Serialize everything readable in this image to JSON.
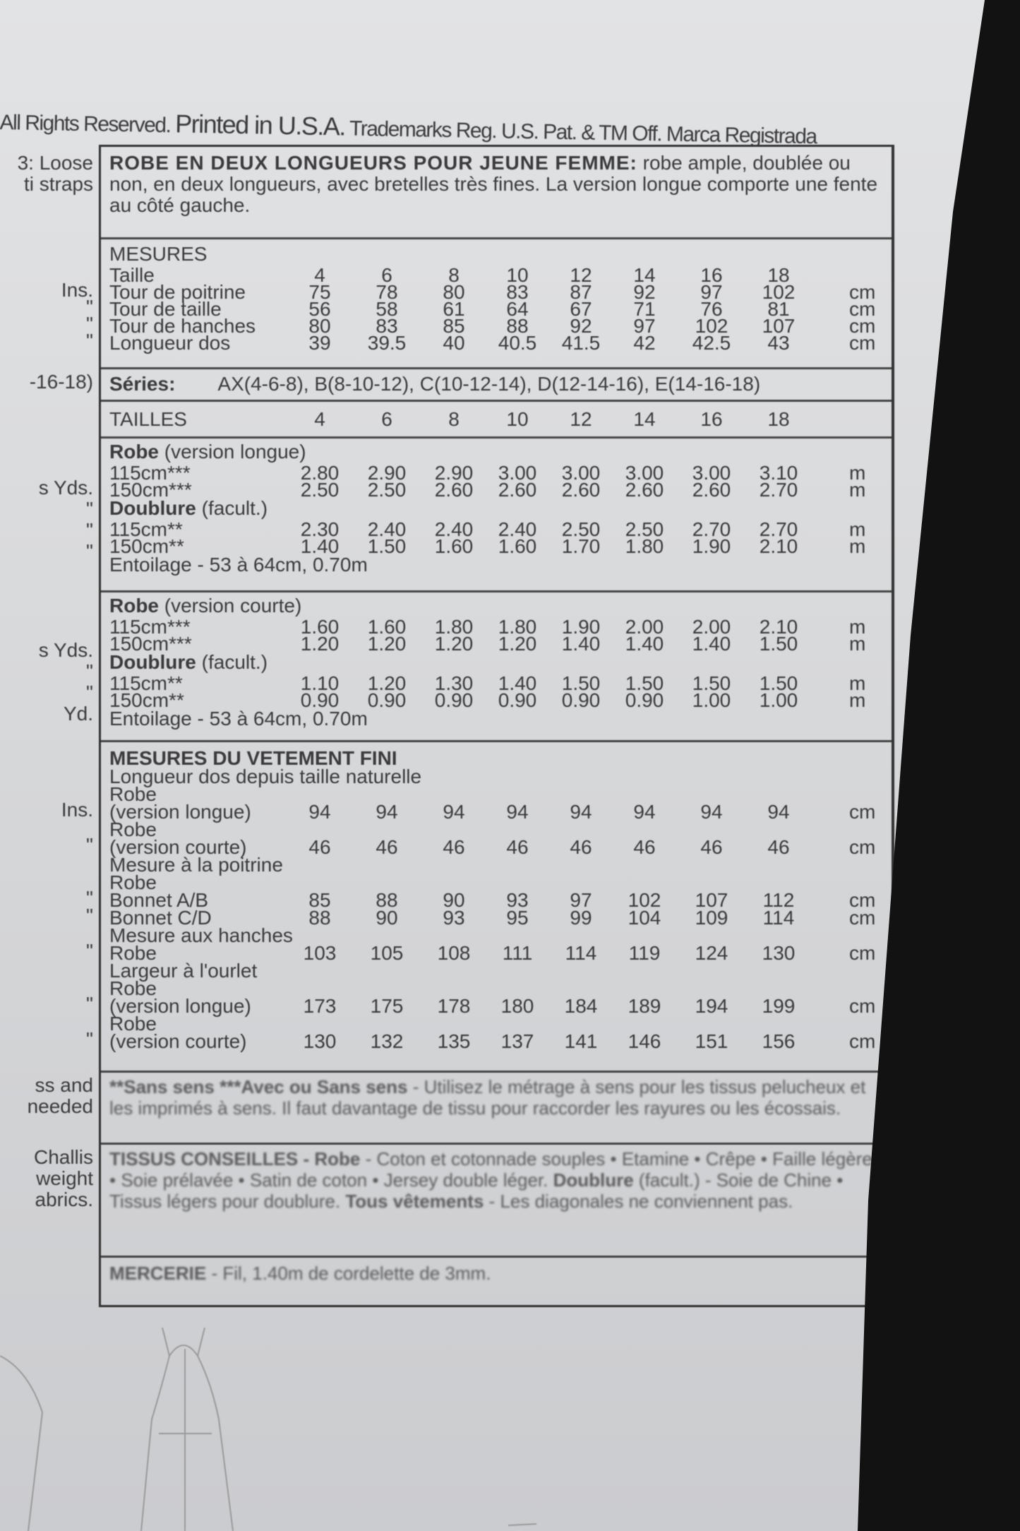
{
  "header": {
    "rights": "All Rights Reserved.",
    "printed": "Printed in U.S.A.",
    "trademarks": "Trademarks Reg. U.S. Pat. & TM Off. Marca Registrada"
  },
  "left_column": {
    "desc": [
      "3: Loose",
      "ti straps"
    ],
    "mesures_units": [
      "Ins.",
      "\"",
      "\"",
      "\""
    ],
    "series": "-16-18)",
    "longue_units": [
      "s Yds.",
      "\"",
      "\"",
      "\""
    ],
    "courte_units": [
      "s Yds.",
      "\"",
      "\"",
      "Yd."
    ],
    "fini_units": [
      "Ins.",
      "\"",
      "\"",
      "\"",
      "\"",
      "\"",
      "\""
    ],
    "nap": [
      "ss and",
      "needed"
    ],
    "fabrics": [
      "Challis",
      "weight",
      "abrics."
    ]
  },
  "title": {
    "heading": "ROBE EN DEUX LONGUEURS POUR JEUNE FEMME:",
    "text": " robe ample, doublée ou non, en deux longueurs, avec bretelles très fines. La version longue comporte une fente au côté gauche."
  },
  "mesures": {
    "heading": "MESURES",
    "rows": [
      {
        "label": "Taille",
        "values": [
          "4",
          "6",
          "8",
          "10",
          "12",
          "14",
          "16",
          "18"
        ],
        "unit": ""
      },
      {
        "label": "Tour de poitrine",
        "values": [
          "75",
          "78",
          "80",
          "83",
          "87",
          "92",
          "97",
          "102"
        ],
        "unit": "cm"
      },
      {
        "label": "Tour de taille",
        "values": [
          "56",
          "58",
          "61",
          "64",
          "67",
          "71",
          "76",
          "81"
        ],
        "unit": "cm"
      },
      {
        "label": "Tour de hanches",
        "values": [
          "80",
          "83",
          "85",
          "88",
          "92",
          "97",
          "102",
          "107"
        ],
        "unit": "cm"
      },
      {
        "label": "Longueur dos",
        "values": [
          "39",
          "39.5",
          "40",
          "40.5",
          "41.5",
          "42",
          "42.5",
          "43"
        ],
        "unit": "cm"
      }
    ]
  },
  "series": {
    "label": "Séries:",
    "value": "AX(4-6-8), B(8-10-12), C(10-12-14), D(12-14-16), E(14-16-18)"
  },
  "tailles": {
    "label": "TAILLES",
    "values": [
      "4",
      "6",
      "8",
      "10",
      "12",
      "14",
      "16",
      "18"
    ]
  },
  "robe_longue": {
    "heading": "Robe",
    "heading_note": " (version longue)",
    "rows": [
      {
        "label": "115cm***",
        "values": [
          "2.80",
          "2.90",
          "2.90",
          "3.00",
          "3.00",
          "3.00",
          "3.00",
          "3.10"
        ],
        "unit": "m"
      },
      {
        "label": "150cm***",
        "values": [
          "2.50",
          "2.50",
          "2.60",
          "2.60",
          "2.60",
          "2.60",
          "2.60",
          "2.70"
        ],
        "unit": "m"
      }
    ],
    "lining_heading": "Doublure",
    "lining_note": " (facult.)",
    "lining_rows": [
      {
        "label": "115cm**",
        "values": [
          "2.30",
          "2.40",
          "2.40",
          "2.40",
          "2.50",
          "2.50",
          "2.70",
          "2.70"
        ],
        "unit": "m"
      },
      {
        "label": "150cm**",
        "values": [
          "1.40",
          "1.50",
          "1.60",
          "1.60",
          "1.70",
          "1.80",
          "1.90",
          "2.10"
        ],
        "unit": "m"
      }
    ],
    "interfacing": "Entoilage - 53 à 64cm, 0.70m"
  },
  "robe_courte": {
    "heading": "Robe",
    "heading_note": " (version courte)",
    "rows": [
      {
        "label": "115cm***",
        "values": [
          "1.60",
          "1.60",
          "1.80",
          "1.80",
          "1.90",
          "2.00",
          "2.00",
          "2.10"
        ],
        "unit": "m"
      },
      {
        "label": "150cm***",
        "values": [
          "1.20",
          "1.20",
          "1.20",
          "1.20",
          "1.40",
          "1.40",
          "1.40",
          "1.50"
        ],
        "unit": "m"
      }
    ],
    "lining_heading": "Doublure",
    "lining_note": " (facult.)",
    "lining_rows": [
      {
        "label": "115cm**",
        "values": [
          "1.10",
          "1.20",
          "1.30",
          "1.40",
          "1.50",
          "1.50",
          "1.50",
          "1.50"
        ],
        "unit": "m"
      },
      {
        "label": "150cm**",
        "values": [
          "0.90",
          "0.90",
          "0.90",
          "0.90",
          "0.90",
          "0.90",
          "1.00",
          "1.00"
        ],
        "unit": "m"
      }
    ],
    "interfacing": "Entoilage - 53 à 64cm, 0.70m"
  },
  "fini": {
    "heading": "MESURES DU VETEMENT FINI",
    "lines": [
      {
        "kind": "text",
        "label": "Longueur dos depuis taille naturelle"
      },
      {
        "kind": "text",
        "label": "Robe"
      },
      {
        "kind": "row",
        "label": "(version longue)",
        "values": [
          "94",
          "94",
          "94",
          "94",
          "94",
          "94",
          "94",
          "94"
        ],
        "unit": "cm"
      },
      {
        "kind": "text",
        "label": "Robe"
      },
      {
        "kind": "row",
        "label": "(version courte)",
        "values": [
          "46",
          "46",
          "46",
          "46",
          "46",
          "46",
          "46",
          "46"
        ],
        "unit": "cm"
      },
      {
        "kind": "text",
        "label": "Mesure à la poitrine"
      },
      {
        "kind": "text",
        "label": "Robe"
      },
      {
        "kind": "row",
        "label": "Bonnet A/B",
        "values": [
          "85",
          "88",
          "90",
          "93",
          "97",
          "102",
          "107",
          "112"
        ],
        "unit": "cm"
      },
      {
        "kind": "row",
        "label": "Bonnet C/D",
        "values": [
          "88",
          "90",
          "93",
          "95",
          "99",
          "104",
          "109",
          "114"
        ],
        "unit": "cm"
      },
      {
        "kind": "text",
        "label": "Mesure aux hanches"
      },
      {
        "kind": "row",
        "label": "Robe",
        "values": [
          "103",
          "105",
          "108",
          "111",
          "114",
          "119",
          "124",
          "130"
        ],
        "unit": "cm"
      },
      {
        "kind": "text",
        "label": "Largeur à l'ourlet"
      },
      {
        "kind": "text",
        "label": "Robe"
      },
      {
        "kind": "row",
        "label": "(version longue)",
        "values": [
          "173",
          "175",
          "178",
          "180",
          "184",
          "189",
          "194",
          "199"
        ],
        "unit": "cm"
      },
      {
        "kind": "text",
        "label": "Robe"
      },
      {
        "kind": "row",
        "label": "(version courte)",
        "values": [
          "130",
          "132",
          "135",
          "137",
          "141",
          "146",
          "151",
          "156"
        ],
        "unit": "cm"
      }
    ]
  },
  "nap": {
    "bold": "**Sans sens  ***Avec ou Sans sens",
    "text": " - Utilisez le métrage à sens pour les tissus pelucheux et les imprimés à sens. Il faut davantage de tissu pour raccorder les rayures ou les écossais."
  },
  "fabrics": {
    "bold1": "TISSUS CONSEILLES - Robe",
    "text1": " - Coton et cotonnade souples • Etamine • Crêpe • Faille légère • Soie prélavée • Satin de coton • Jersey double léger. ",
    "bold2": "Doublure",
    "text2": " (facult.) - Soie de Chine • Tissus légers pour doublure. ",
    "bold3": "Tous vêtements",
    "text3": " - Les diagonales ne conviennent pas."
  },
  "notions": {
    "bold": "MERCERIE",
    "text": " - Fil, 1.40m de cordelette de 3mm."
  }
}
